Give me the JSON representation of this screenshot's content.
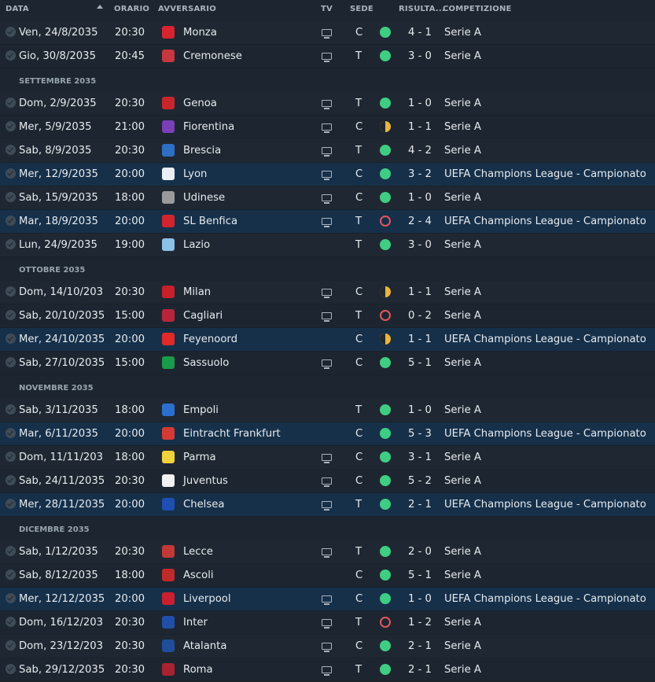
{
  "headers": {
    "date": "DATA",
    "time": "ORARIO",
    "opponent": "AVVERSARIO",
    "tv": "TV",
    "venue": "SEDE",
    "result": "RISULTA...",
    "competition": "COMPETIZIONE"
  },
  "colors": {
    "win": "#3fcd83",
    "draw": "#e9b53c",
    "loss": "#e0575f",
    "highlight_row": "#16304a"
  },
  "items": [
    {
      "type": "match",
      "date": "Ven, 24/8/2035",
      "time": "20:30",
      "opponent": "Monza",
      "crest": "#d8242f",
      "tv": true,
      "venue": "C",
      "result": "W",
      "score": "4 - 1",
      "competition": "Serie A",
      "cl": false
    },
    {
      "type": "match",
      "date": "Gio, 30/8/2035",
      "time": "20:45",
      "opponent": "Cremonese",
      "crest": "#c7373f",
      "tv": true,
      "venue": "T",
      "result": "W",
      "score": "3 - 0",
      "competition": "Serie A",
      "cl": false
    },
    {
      "type": "month",
      "label": "SETTEMBRE 2035"
    },
    {
      "type": "match",
      "date": "Dom, 2/9/2035",
      "time": "20:30",
      "opponent": "Genoa",
      "crest": "#c9262c",
      "tv": true,
      "venue": "T",
      "result": "W",
      "score": "1 - 0",
      "competition": "Serie A",
      "cl": false
    },
    {
      "type": "match",
      "date": "Mer, 5/9/2035",
      "time": "21:00",
      "opponent": "Fiorentina",
      "crest": "#7b3fb8",
      "tv": true,
      "venue": "C",
      "result": "D",
      "score": "1 - 1",
      "competition": "Serie A",
      "cl": false
    },
    {
      "type": "match",
      "date": "Sab, 8/9/2035",
      "time": "20:30",
      "opponent": "Brescia",
      "crest": "#2e6fc6",
      "tv": true,
      "venue": "T",
      "result": "W",
      "score": "4 - 2",
      "competition": "Serie A",
      "cl": false
    },
    {
      "type": "match",
      "date": "Mer, 12/9/2035",
      "time": "20:00",
      "opponent": "Lyon",
      "crest": "#e9eef5",
      "tv": true,
      "venue": "C",
      "result": "W",
      "score": "3 - 2",
      "competition": "UEFA Champions League - Campionato",
      "cl": true
    },
    {
      "type": "match",
      "date": "Sab, 15/9/2035",
      "time": "18:00",
      "opponent": "Udinese",
      "crest": "#9a9a9a",
      "tv": true,
      "venue": "C",
      "result": "W",
      "score": "1 - 0",
      "competition": "Serie A",
      "cl": false
    },
    {
      "type": "match",
      "date": "Mar, 18/9/2035",
      "time": "20:00",
      "opponent": "SL Benfica",
      "crest": "#d1252e",
      "tv": true,
      "venue": "T",
      "result": "L",
      "score": "2 - 4",
      "competition": "UEFA Champions League - Campionato",
      "cl": true
    },
    {
      "type": "match",
      "date": "Lun, 24/9/2035",
      "time": "19:00",
      "opponent": "Lazio",
      "crest": "#8cc1e8",
      "tv": false,
      "venue": "T",
      "result": "W",
      "score": "3 - 0",
      "competition": "Serie A",
      "cl": false
    },
    {
      "type": "month",
      "label": "OTTOBRE 2035"
    },
    {
      "type": "match",
      "date": "Dom, 14/10/2035",
      "time": "20:30",
      "opponent": "Milan",
      "crest": "#c8202b",
      "tv": true,
      "venue": "C",
      "result": "D",
      "score": "1 - 1",
      "competition": "Serie A",
      "cl": false
    },
    {
      "type": "match",
      "date": "Sab, 20/10/2035",
      "time": "15:00",
      "opponent": "Cagliari",
      "crest": "#b8253a",
      "tv": true,
      "venue": "T",
      "result": "L",
      "score": "0 - 2",
      "competition": "Serie A",
      "cl": false
    },
    {
      "type": "match",
      "date": "Mer, 24/10/2035",
      "time": "20:00",
      "opponent": "Feyenoord",
      "crest": "#e02a2a",
      "tv": false,
      "venue": "C",
      "result": "D",
      "score": "1 - 1",
      "competition": "UEFA Champions League - Campionato",
      "cl": true
    },
    {
      "type": "match",
      "date": "Sab, 27/10/2035",
      "time": "15:00",
      "opponent": "Sassuolo",
      "crest": "#1a9a4b",
      "tv": true,
      "venue": "C",
      "result": "W",
      "score": "5 - 1",
      "competition": "Serie A",
      "cl": false
    },
    {
      "type": "month",
      "label": "NOVEMBRE 2035"
    },
    {
      "type": "match",
      "date": "Sab, 3/11/2035",
      "time": "18:00",
      "opponent": "Empoli",
      "crest": "#2b6fd0",
      "tv": false,
      "venue": "T",
      "result": "W",
      "score": "1 - 0",
      "competition": "Serie A",
      "cl": false
    },
    {
      "type": "match",
      "date": "Mar, 6/11/2035",
      "time": "20:00",
      "opponent": "Eintracht Frankfurt",
      "crest": "#d33a34",
      "tv": false,
      "venue": "C",
      "result": "W",
      "score": "5 - 3",
      "competition": "UEFA Champions League - Campionato",
      "cl": true
    },
    {
      "type": "match",
      "date": "Dom, 11/11/2035",
      "time": "18:00",
      "opponent": "Parma",
      "crest": "#f0d23c",
      "tv": true,
      "venue": "C",
      "result": "W",
      "score": "3 - 1",
      "competition": "Serie A",
      "cl": false
    },
    {
      "type": "match",
      "date": "Sab, 24/11/2035",
      "time": "20:30",
      "opponent": "Juventus",
      "crest": "#f1f1f1",
      "tv": true,
      "venue": "C",
      "result": "W",
      "score": "5 - 2",
      "competition": "Serie A",
      "cl": false
    },
    {
      "type": "match",
      "date": "Mer, 28/11/2035",
      "time": "20:00",
      "opponent": "Chelsea",
      "crest": "#1e4fb3",
      "tv": true,
      "venue": "T",
      "result": "W",
      "score": "2 - 1",
      "competition": "UEFA Champions League - Campionato",
      "cl": true
    },
    {
      "type": "month",
      "label": "DICEMBRE 2035"
    },
    {
      "type": "match",
      "date": "Sab, 1/12/2035",
      "time": "20:30",
      "opponent": "Lecce",
      "crest": "#c23a36",
      "tv": true,
      "venue": "T",
      "result": "W",
      "score": "2 - 0",
      "competition": "Serie A",
      "cl": false
    },
    {
      "type": "match",
      "date": "Sab, 8/12/2035",
      "time": "18:00",
      "opponent": "Ascoli",
      "crest": "#c02a2a",
      "tv": false,
      "venue": "C",
      "result": "W",
      "score": "5 - 1",
      "competition": "Serie A",
      "cl": false
    },
    {
      "type": "match",
      "date": "Mer, 12/12/2035",
      "time": "20:00",
      "opponent": "Liverpool",
      "crest": "#c9202f",
      "tv": true,
      "venue": "C",
      "result": "W",
      "score": "1 - 0",
      "competition": "UEFA Champions League - Campionato",
      "cl": true
    },
    {
      "type": "match",
      "date": "Dom, 16/12/2035",
      "time": "20:30",
      "opponent": "Inter",
      "crest": "#1f4fa8",
      "tv": true,
      "venue": "T",
      "result": "L",
      "score": "1 - 2",
      "competition": "Serie A",
      "cl": false
    },
    {
      "type": "match",
      "date": "Dom, 23/12/2035",
      "time": "20:30",
      "opponent": "Atalanta",
      "crest": "#1f4d9a",
      "tv": true,
      "venue": "C",
      "result": "W",
      "score": "2 - 1",
      "competition": "Serie A",
      "cl": false
    },
    {
      "type": "match",
      "date": "Sab, 29/12/2035",
      "time": "20:30",
      "opponent": "Roma",
      "crest": "#a8232f",
      "tv": true,
      "venue": "T",
      "result": "W",
      "score": "2 - 1",
      "competition": "Serie A",
      "cl": false
    }
  ]
}
